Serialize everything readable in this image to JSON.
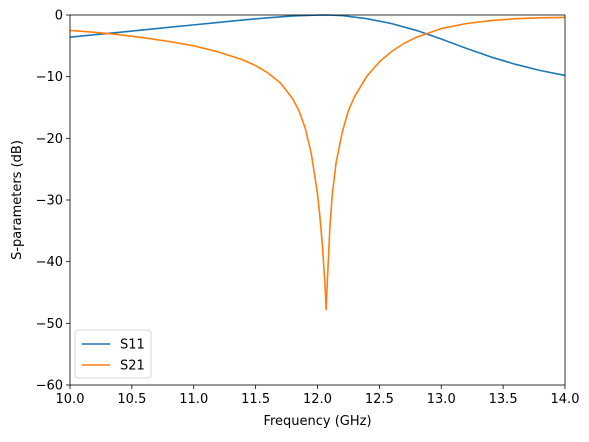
{
  "chart_data": {
    "type": "line",
    "title": "",
    "xlabel": "Frequency (GHz)",
    "ylabel": "S-parameters (dB)",
    "xlim": [
      10.0,
      14.0
    ],
    "ylim": [
      -60,
      0
    ],
    "xticks": [
      10.0,
      10.5,
      11.0,
      11.5,
      12.0,
      12.5,
      13.0,
      13.5,
      14.0
    ],
    "xtick_labels": [
      "10.0",
      "10.5",
      "11.0",
      "11.5",
      "12.0",
      "12.5",
      "13.0",
      "13.5",
      "14.0"
    ],
    "yticks": [
      0,
      -10,
      -20,
      -30,
      -40,
      -50,
      -60
    ],
    "ytick_labels": [
      "0",
      "−10",
      "−20",
      "−30",
      "−40",
      "−50",
      "−60"
    ],
    "grid": false,
    "legend_position": "lower-left",
    "series": [
      {
        "name": "S11",
        "color": "#1f77b4",
        "x": [
          10.0,
          10.2,
          10.4,
          10.6,
          10.8,
          11.0,
          11.2,
          11.4,
          11.6,
          11.8,
          12.0,
          12.07,
          12.2,
          12.4,
          12.6,
          12.8,
          13.0,
          13.2,
          13.4,
          13.6,
          13.8,
          14.0
        ],
        "y": [
          -3.6,
          -3.2,
          -2.8,
          -2.4,
          -2.0,
          -1.6,
          -1.2,
          -0.8,
          -0.45,
          -0.15,
          -0.02,
          0.0,
          -0.1,
          -0.6,
          -1.4,
          -2.5,
          -3.9,
          -5.4,
          -6.8,
          -8.0,
          -9.0,
          -9.8
        ]
      },
      {
        "name": "S21",
        "color": "#ff7f0e",
        "x": [
          10.0,
          10.2,
          10.4,
          10.6,
          10.8,
          11.0,
          11.2,
          11.4,
          11.5,
          11.6,
          11.7,
          11.8,
          11.85,
          11.9,
          11.95,
          12.0,
          12.02,
          12.04,
          12.06,
          12.07,
          12.08,
          12.1,
          12.12,
          12.15,
          12.2,
          12.25,
          12.3,
          12.4,
          12.5,
          12.6,
          12.7,
          12.8,
          13.0,
          13.2,
          13.4,
          13.6,
          13.8,
          14.0
        ],
        "y": [
          -2.5,
          -2.8,
          -3.2,
          -3.7,
          -4.3,
          -5.0,
          -6.0,
          -7.3,
          -8.2,
          -9.4,
          -11.0,
          -13.6,
          -15.5,
          -18.3,
          -22.5,
          -29.0,
          -32.8,
          -37.5,
          -43.5,
          -47.8,
          -43.0,
          -34.5,
          -29.0,
          -24.0,
          -19.0,
          -15.5,
          -13.2,
          -9.9,
          -7.6,
          -5.9,
          -4.6,
          -3.6,
          -2.2,
          -1.4,
          -0.9,
          -0.6,
          -0.45,
          -0.4
        ]
      }
    ]
  }
}
